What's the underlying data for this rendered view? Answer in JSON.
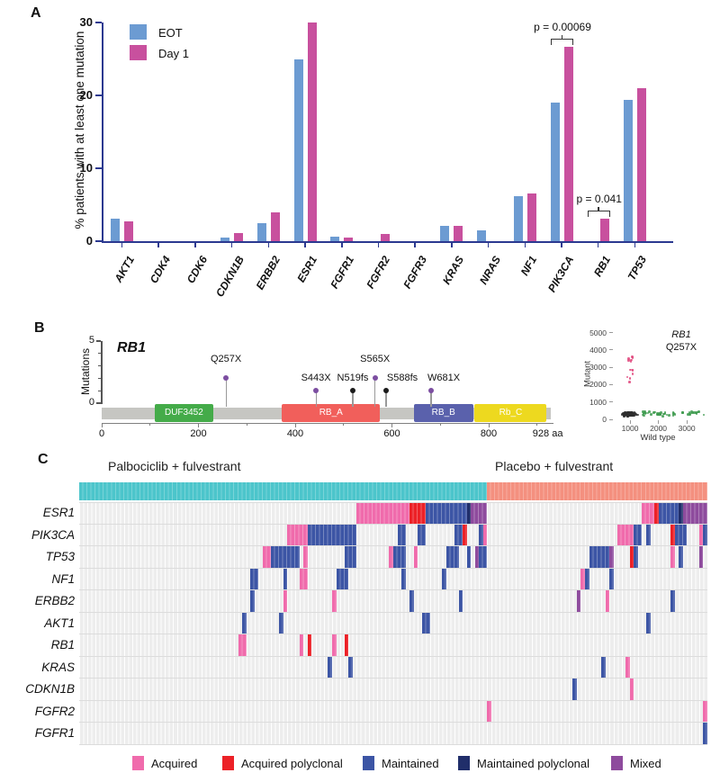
{
  "panels": {
    "a_label": "A",
    "b_label": "B",
    "c_label": "C"
  },
  "styles": {
    "axis_color": "#2B3990",
    "bracket_color": "#333333",
    "minor_axis_color": "#808080",
    "row_line_color": "#dcdcdc",
    "stripe_bg": "#ededed"
  },
  "chart_data": [
    {
      "id": "panel_a",
      "type": "bar",
      "ylabel": "% patients with at least one mutation",
      "categories": [
        "AKT1",
        "CDK4",
        "CDK6",
        "CDKN1B",
        "ERBB2",
        "ESR1",
        "FGFR1",
        "FGFR2",
        "FGFR3",
        "KRAS",
        "NRAS",
        "NF1",
        "PIK3CA",
        "RB1",
        "TP53"
      ],
      "series": [
        {
          "name": "EOT",
          "color": "#6C9BD2",
          "values": [
            3.1,
            0,
            0,
            0.5,
            2.5,
            25,
            0.6,
            0,
            0,
            2.1,
            1.5,
            6.2,
            19,
            0,
            19.4
          ]
        },
        {
          "name": "Day 1",
          "color": "#C8509E",
          "values": [
            2.7,
            0,
            0,
            1.1,
            4.0,
            30,
            0.5,
            1.0,
            0,
            2.1,
            0,
            6.6,
            26.7,
            3.1,
            21
          ]
        }
      ],
      "ylim": [
        0,
        30
      ],
      "yticks": [
        0,
        10,
        20,
        30
      ],
      "legend_position": "top-left",
      "annotations": [
        {
          "text": "p = 0.00069",
          "category": "PIK3CA"
        },
        {
          "text": "p = 0.041",
          "category": "RB1"
        }
      ]
    },
    {
      "id": "panel_b_lollipop",
      "type": "lollipop",
      "gene": "RB1",
      "ylabel": "Mutations",
      "ylim": [
        0,
        5
      ],
      "ytick_labels": [
        0,
        5
      ],
      "protein_length_aa": 928,
      "xticks": [
        0,
        200,
        400,
        600,
        800
      ],
      "minor_xticks": [
        100,
        300,
        500,
        700,
        900
      ],
      "x_end_label": "928 aa",
      "backbone_color": "#C6C6C2",
      "domains": [
        {
          "name": "DUF3452",
          "start_aa": 110,
          "end_aa": 230,
          "color": "#44AB49"
        },
        {
          "name": "RB_A",
          "start_aa": 373,
          "end_aa": 575,
          "color": "#F15F5B"
        },
        {
          "name": "RB_B",
          "start_aa": 645,
          "end_aa": 768,
          "color": "#5A61AC"
        },
        {
          "name": "Rb_C",
          "start_aa": 771,
          "end_aa": 920,
          "color": "#EDD91F"
        }
      ],
      "mutations": [
        {
          "label": "Q257X",
          "aa": 257,
          "count": 2,
          "dot_color": "#7C4EA1"
        },
        {
          "label": "S443X",
          "aa": 443,
          "count": 1,
          "dot_color": "#7C4EA1"
        },
        {
          "label": "N519fs",
          "aa": 519,
          "count": 1,
          "dot_color": "#1b1b1b"
        },
        {
          "label": "S565X",
          "aa": 565,
          "count": 2,
          "dot_color": "#7C4EA1"
        },
        {
          "label": "S588fs",
          "aa": 588,
          "count": 1,
          "dot_color": "#1b1b1b"
        },
        {
          "label": "W681X",
          "aa": 681,
          "count": 1,
          "dot_color": "#7C4EA1"
        }
      ]
    },
    {
      "id": "panel_b_scatter",
      "type": "scatter",
      "title_line1": "RB1",
      "title_line2": "Q257X",
      "xlabel": "Wild type",
      "ylabel": "Mutant",
      "xlim": [
        0,
        3800
      ],
      "ylim": [
        0,
        5000
      ],
      "xticks": [
        1000,
        2000,
        3000
      ],
      "yticks": [
        0,
        1000,
        2000,
        3000,
        4000,
        5000
      ],
      "clusters": [
        {
          "name": "wild-type-cluster",
          "color": "#2e2e2e",
          "count": 95,
          "x": {
            "dist": "gauss",
            "mean": 980,
            "sd": 110
          },
          "y": {
            "dist": "gauss",
            "mean": 300,
            "sd": 60
          }
        },
        {
          "name": "green-cluster",
          "color": "#3E9B4F",
          "count": 48,
          "x": {
            "dist": "uniform",
            "min": 1450,
            "max": 3650
          },
          "y": {
            "dist": "gauss",
            "mean": 360,
            "sd": 65
          }
        },
        {
          "name": "mutant-cluster",
          "color": "#E0457B",
          "count": 14,
          "x": {
            "dist": "gauss",
            "mean": 1030,
            "sd": 55
          },
          "y": {
            "dist": "uniform",
            "min": 2100,
            "max": 3700
          }
        }
      ]
    },
    {
      "id": "panel_c",
      "type": "heatmap",
      "n_cols": 154,
      "groups": [
        {
          "label": "Palbociclib + fulvestrant",
          "color": "#4CC5CB",
          "start_col": 0,
          "n_cols": 100
        },
        {
          "label": "Placebo + fulvestrant",
          "color": "#F4907F",
          "start_col": 100,
          "n_cols": 54
        }
      ],
      "rows": [
        "ESR1",
        "PIK3CA",
        "TP53",
        "NF1",
        "ERBB2",
        "AKT1",
        "RB1",
        "KRAS",
        "CDKN1B",
        "FGFR2",
        "FGFR1"
      ],
      "categories": {
        "A": {
          "label": "Acquired",
          "color": "#F06BAC"
        },
        "AP": {
          "label": "Acquired polyclonal",
          "color": "#EC2127"
        },
        "M": {
          "label": "Maintained",
          "color": "#3C55A5"
        },
        "MP": {
          "label": "Maintained polyclonal",
          "color": "#202E6A"
        },
        "X": {
          "label": "Mixed",
          "color": "#8E4B9D"
        }
      },
      "legend_order": [
        "A",
        "AP",
        "M",
        "MP",
        "X"
      ],
      "cells": {
        "ESR1": [
          [
            68,
            13,
            "A"
          ],
          [
            81,
            4,
            "AP"
          ],
          [
            85,
            10,
            "M"
          ],
          [
            95,
            1,
            "MP"
          ],
          [
            96,
            4,
            "X"
          ],
          [
            138,
            3,
            "A"
          ],
          [
            141,
            1,
            "AP"
          ],
          [
            142,
            5,
            "M"
          ],
          [
            147,
            1,
            "MP"
          ],
          [
            148,
            6,
            "X"
          ]
        ],
        "PIK3CA": [
          [
            51,
            5,
            "A"
          ],
          [
            56,
            12,
            "M"
          ],
          [
            78,
            2,
            "M"
          ],
          [
            83,
            2,
            "M"
          ],
          [
            92,
            2,
            "M"
          ],
          [
            94,
            1,
            "AP"
          ],
          [
            98,
            1,
            "M"
          ],
          [
            99,
            1,
            "A"
          ],
          [
            132,
            4,
            "A"
          ],
          [
            136,
            2,
            "M"
          ],
          [
            139,
            1,
            "M"
          ],
          [
            145,
            1,
            "AP"
          ],
          [
            146,
            3,
            "M"
          ],
          [
            152,
            1,
            "A"
          ],
          [
            153,
            1,
            "M"
          ]
        ],
        "TP53": [
          [
            45,
            2,
            "A"
          ],
          [
            47,
            7,
            "M"
          ],
          [
            55,
            1,
            "A"
          ],
          [
            65,
            3,
            "M"
          ],
          [
            76,
            1,
            "A"
          ],
          [
            77,
            3,
            "M"
          ],
          [
            82,
            1,
            "A"
          ],
          [
            90,
            3,
            "M"
          ],
          [
            95,
            1,
            "M"
          ],
          [
            97,
            1,
            "X"
          ],
          [
            98,
            2,
            "M"
          ],
          [
            125,
            5,
            "M"
          ],
          [
            130,
            1,
            "X"
          ],
          [
            135,
            1,
            "AP"
          ],
          [
            136,
            1,
            "M"
          ],
          [
            145,
            1,
            "A"
          ],
          [
            147,
            1,
            "M"
          ],
          [
            152,
            1,
            "X"
          ]
        ],
        "NF1": [
          [
            42,
            2,
            "M"
          ],
          [
            50,
            1,
            "M"
          ],
          [
            54,
            2,
            "A"
          ],
          [
            63,
            3,
            "M"
          ],
          [
            79,
            1,
            "M"
          ],
          [
            89,
            1,
            "M"
          ],
          [
            123,
            1,
            "A"
          ],
          [
            124,
            1,
            "M"
          ],
          [
            130,
            1,
            "M"
          ]
        ],
        "ERBB2": [
          [
            42,
            1,
            "M"
          ],
          [
            50,
            1,
            "A"
          ],
          [
            62,
            1,
            "A"
          ],
          [
            81,
            1,
            "M"
          ],
          [
            93,
            1,
            "M"
          ],
          [
            122,
            1,
            "X"
          ],
          [
            129,
            1,
            "A"
          ],
          [
            145,
            1,
            "M"
          ]
        ],
        "AKT1": [
          [
            40,
            1,
            "M"
          ],
          [
            49,
            1,
            "M"
          ],
          [
            84,
            2,
            "M"
          ],
          [
            139,
            1,
            "M"
          ]
        ],
        "RB1": [
          [
            39,
            2,
            "A"
          ],
          [
            54,
            1,
            "A"
          ],
          [
            56,
            1,
            "AP"
          ],
          [
            62,
            1,
            "A"
          ],
          [
            65,
            1,
            "AP"
          ]
        ],
        "KRAS": [
          [
            61,
            1,
            "M"
          ],
          [
            66,
            1,
            "M"
          ],
          [
            128,
            1,
            "M"
          ],
          [
            134,
            1,
            "A"
          ]
        ],
        "CDKN1B": [
          [
            121,
            1,
            "M"
          ],
          [
            135,
            1,
            "A"
          ]
        ],
        "FGFR2": [
          [
            100,
            1,
            "A"
          ],
          [
            153,
            1,
            "A"
          ]
        ],
        "FGFR1": [
          [
            153,
            1,
            "M"
          ]
        ]
      }
    }
  ]
}
